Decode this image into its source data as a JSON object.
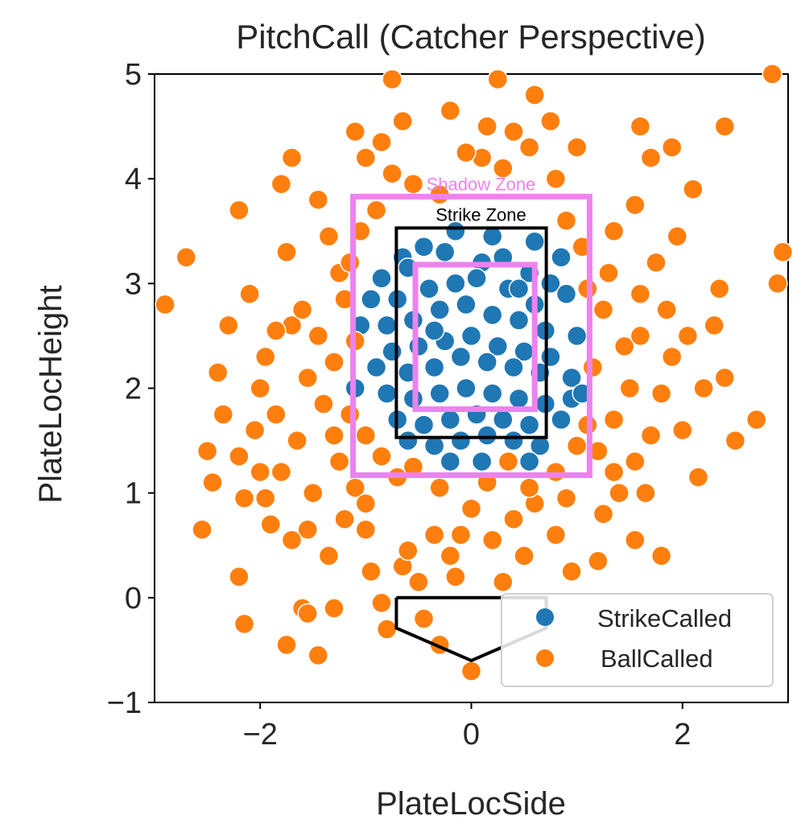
{
  "chart_data": {
    "type": "scatter",
    "title": "PitchCall (Catcher Perspective)",
    "xlabel": "PlateLocSide",
    "ylabel": "PlateLocHeight",
    "xlim": [
      -3,
      3
    ],
    "ylim": [
      -1,
      5
    ],
    "xticks": [
      {
        "value": -2,
        "label": "−2"
      },
      {
        "value": 0,
        "label": "0"
      },
      {
        "value": 2,
        "label": "2"
      }
    ],
    "yticks": [
      {
        "value": -1,
        "label": "−1"
      },
      {
        "value": 0,
        "label": "0"
      },
      {
        "value": 1,
        "label": "1"
      },
      {
        "value": 2,
        "label": "2"
      },
      {
        "value": 3,
        "label": "3"
      },
      {
        "value": 4,
        "label": "4"
      },
      {
        "value": 5,
        "label": "5"
      }
    ],
    "grid": false,
    "legend_position": "lower-right",
    "series": [
      {
        "name": "StrikeCalled",
        "color": "#1f77b4",
        "points": [
          [
            -0.85,
            3.05
          ],
          [
            -0.65,
            3.25
          ],
          [
            -0.45,
            3.35
          ],
          [
            -0.25,
            3.3
          ],
          [
            0.1,
            3.2
          ],
          [
            0.3,
            3.25
          ],
          [
            0.55,
            3.1
          ],
          [
            0.75,
            3.0
          ],
          [
            -0.7,
            2.85
          ],
          [
            -0.4,
            2.95
          ],
          [
            -0.15,
            3.0
          ],
          [
            0.05,
            3.05
          ],
          [
            0.35,
            2.95
          ],
          [
            0.6,
            2.8
          ],
          [
            0.9,
            2.9
          ],
          [
            -0.8,
            2.6
          ],
          [
            -0.55,
            2.65
          ],
          [
            -0.3,
            2.75
          ],
          [
            -0.05,
            2.8
          ],
          [
            0.2,
            2.7
          ],
          [
            0.45,
            2.65
          ],
          [
            0.7,
            2.55
          ],
          [
            -0.75,
            2.35
          ],
          [
            -0.5,
            2.4
          ],
          [
            -0.25,
            2.45
          ],
          [
            0.0,
            2.5
          ],
          [
            0.25,
            2.4
          ],
          [
            0.5,
            2.35
          ],
          [
            0.75,
            2.3
          ],
          [
            -0.9,
            2.2
          ],
          [
            -0.6,
            2.15
          ],
          [
            -0.35,
            2.2
          ],
          [
            -0.1,
            2.3
          ],
          [
            0.15,
            2.25
          ],
          [
            0.4,
            2.2
          ],
          [
            0.65,
            2.15
          ],
          [
            0.95,
            2.1
          ],
          [
            -0.8,
            1.95
          ],
          [
            -0.55,
            1.9
          ],
          [
            -0.3,
            1.95
          ],
          [
            -0.05,
            2.0
          ],
          [
            0.2,
            1.95
          ],
          [
            0.45,
            1.9
          ],
          [
            0.7,
            1.85
          ],
          [
            0.95,
            1.9
          ],
          [
            -0.7,
            1.7
          ],
          [
            -0.45,
            1.65
          ],
          [
            -0.2,
            1.7
          ],
          [
            0.05,
            1.75
          ],
          [
            0.3,
            1.7
          ],
          [
            0.55,
            1.65
          ],
          [
            0.85,
            1.7
          ],
          [
            -0.6,
            1.5
          ],
          [
            -0.35,
            1.45
          ],
          [
            -0.1,
            1.5
          ],
          [
            0.15,
            1.55
          ],
          [
            0.4,
            1.5
          ],
          [
            0.65,
            1.45
          ],
          [
            -0.2,
            1.3
          ],
          [
            0.1,
            1.3
          ],
          [
            0.55,
            1.3
          ],
          [
            -1.1,
            2.0
          ],
          [
            -1.05,
            2.6
          ],
          [
            1.0,
            2.5
          ],
          [
            1.05,
            1.95
          ],
          [
            -0.15,
            3.5
          ],
          [
            0.2,
            3.45
          ],
          [
            -0.6,
            3.15
          ],
          [
            0.85,
            3.25
          ],
          [
            -0.95,
            2.85
          ],
          [
            0.6,
            3.4
          ],
          [
            -0.35,
            2.55
          ],
          [
            0.45,
            2.95
          ]
        ]
      },
      {
        "name": "BallCalled",
        "color": "#ff7f0e",
        "points": [
          [
            -2.9,
            2.8
          ],
          [
            -2.7,
            3.25
          ],
          [
            -2.2,
            3.7
          ],
          [
            -2.1,
            2.9
          ],
          [
            -2.3,
            2.6
          ],
          [
            -2.4,
            2.15
          ],
          [
            -2.5,
            1.4
          ],
          [
            -2.45,
            1.1
          ],
          [
            -2.55,
            0.65
          ],
          [
            -2.2,
            1.35
          ],
          [
            -2.15,
            0.95
          ],
          [
            -2.0,
            2.0
          ],
          [
            -1.95,
            2.3
          ],
          [
            -1.85,
            1.75
          ],
          [
            -1.8,
            1.2
          ],
          [
            -1.9,
            0.7
          ],
          [
            -2.2,
            0.2
          ],
          [
            -2.15,
            -0.25
          ],
          [
            -1.75,
            -0.45
          ],
          [
            -1.6,
            -0.1
          ],
          [
            -1.45,
            -0.55
          ],
          [
            -1.35,
            0.4
          ],
          [
            -1.2,
            0.75
          ],
          [
            -1.5,
            1.0
          ],
          [
            -1.65,
            1.5
          ],
          [
            -1.7,
            2.6
          ],
          [
            -1.75,
            3.3
          ],
          [
            -1.8,
            3.95
          ],
          [
            -1.7,
            4.2
          ],
          [
            -1.45,
            3.8
          ],
          [
            -1.35,
            3.45
          ],
          [
            -1.25,
            3.1
          ],
          [
            -1.6,
            2.75
          ],
          [
            -1.55,
            2.1
          ],
          [
            -1.4,
            1.85
          ],
          [
            -1.3,
            1.55
          ],
          [
            -1.25,
            1.3
          ],
          [
            -1.1,
            1.05
          ],
          [
            -1.0,
            0.65
          ],
          [
            -0.95,
            0.25
          ],
          [
            -0.85,
            -0.05
          ],
          [
            -0.65,
            0.3
          ],
          [
            -0.5,
            0.15
          ],
          [
            -0.35,
            0.6
          ],
          [
            -0.2,
            0.4
          ],
          [
            0.0,
            0.85
          ],
          [
            0.2,
            0.55
          ],
          [
            0.4,
            0.75
          ],
          [
            0.6,
            0.9
          ],
          [
            0.8,
            0.6
          ],
          [
            0.95,
            0.25
          ],
          [
            1.2,
            0.35
          ],
          [
            1.25,
            0.8
          ],
          [
            1.4,
            1.0
          ],
          [
            1.55,
            1.3
          ],
          [
            1.7,
            1.55
          ],
          [
            1.8,
            1.95
          ],
          [
            1.9,
            2.3
          ],
          [
            1.85,
            2.75
          ],
          [
            1.75,
            3.2
          ],
          [
            1.95,
            3.45
          ],
          [
            2.1,
            3.9
          ],
          [
            1.7,
            4.2
          ],
          [
            1.55,
            3.75
          ],
          [
            1.35,
            3.5
          ],
          [
            1.3,
            3.1
          ],
          [
            1.25,
            2.75
          ],
          [
            1.45,
            2.4
          ],
          [
            1.5,
            2.0
          ],
          [
            1.35,
            1.7
          ],
          [
            1.2,
            1.4
          ],
          [
            2.0,
            1.6
          ],
          [
            2.15,
            1.15
          ],
          [
            1.8,
            0.4
          ],
          [
            2.3,
            2.6
          ],
          [
            2.4,
            2.1
          ],
          [
            2.5,
            1.5
          ],
          [
            2.7,
            1.7
          ],
          [
            2.9,
            3.0
          ],
          [
            2.95,
            3.3
          ],
          [
            2.4,
            4.5
          ],
          [
            1.9,
            4.3
          ],
          [
            2.85,
            5.0
          ],
          [
            1.6,
            4.5
          ],
          [
            1.0,
            4.3
          ],
          [
            0.8,
            4.0
          ],
          [
            0.55,
            4.3
          ],
          [
            0.75,
            4.55
          ],
          [
            0.25,
            4.95
          ],
          [
            0.6,
            4.8
          ],
          [
            0.3,
            4.1
          ],
          [
            0.1,
            4.2
          ],
          [
            -0.05,
            4.25
          ],
          [
            -0.3,
            3.85
          ],
          [
            -0.55,
            3.95
          ],
          [
            -0.75,
            4.05
          ],
          [
            -0.85,
            4.35
          ],
          [
            -0.65,
            4.55
          ],
          [
            -0.75,
            4.95
          ],
          [
            -1.1,
            4.45
          ],
          [
            -1.0,
            4.2
          ],
          [
            -0.2,
            4.65
          ],
          [
            0.4,
            4.45
          ],
          [
            0.15,
            4.5
          ],
          [
            -1.05,
            3.5
          ],
          [
            -1.15,
            3.2
          ],
          [
            -1.2,
            2.85
          ],
          [
            -1.1,
            2.45
          ],
          [
            -1.15,
            1.75
          ],
          [
            -1.0,
            1.55
          ],
          [
            -0.85,
            1.35
          ],
          [
            -0.7,
            1.15
          ],
          [
            -0.55,
            1.25
          ],
          [
            -0.3,
            1.05
          ],
          [
            0.15,
            1.1
          ],
          [
            0.35,
            1.3
          ],
          [
            0.55,
            1.05
          ],
          [
            0.8,
            1.2
          ],
          [
            1.0,
            1.45
          ],
          [
            1.1,
            1.65
          ],
          [
            1.15,
            2.2
          ],
          [
            1.1,
            2.95
          ],
          [
            1.05,
            3.35
          ],
          [
            0.9,
            3.6
          ],
          [
            -0.9,
            3.7
          ],
          [
            -1.3,
            2.25
          ],
          [
            -1.45,
            2.5
          ],
          [
            -1.0,
            0.9
          ],
          [
            -0.1,
            0.6
          ],
          [
            0.5,
            0.4
          ],
          [
            0.0,
            -0.7
          ],
          [
            -0.3,
            -0.45
          ],
          [
            -0.45,
            -0.2
          ],
          [
            -1.3,
            -0.1
          ],
          [
            -1.55,
            -0.15
          ],
          [
            -0.8,
            -0.3
          ],
          [
            -2.35,
            1.75
          ],
          [
            -2.05,
            1.6
          ],
          [
            2.05,
            2.5
          ],
          [
            2.2,
            2.0
          ],
          [
            2.35,
            2.95
          ],
          [
            1.6,
            2.9
          ],
          [
            1.6,
            2.5
          ],
          [
            1.65,
            1.0
          ],
          [
            1.55,
            0.55
          ],
          [
            0.9,
            0.95
          ],
          [
            -1.55,
            0.65
          ],
          [
            -1.95,
            0.95
          ],
          [
            -1.7,
            0.55
          ],
          [
            -0.6,
            0.45
          ],
          [
            -0.15,
            0.2
          ],
          [
            0.3,
            0.15
          ],
          [
            1.35,
            1.2
          ],
          [
            -1.85,
            2.55
          ],
          [
            -2.0,
            1.2
          ]
        ]
      }
    ],
    "shapes": {
      "shadow_zone": {
        "label": "Shadow Zone",
        "color": "#ee82ee",
        "x": [
          -1.12,
          1.12
        ],
        "y": [
          1.17,
          3.83
        ]
      },
      "strike_zone": {
        "label": "Strike Zone",
        "color": "#000000",
        "x": [
          -0.71,
          0.71
        ],
        "y": [
          1.53,
          3.53
        ]
      },
      "heart_zone": {
        "color": "#ee82ee",
        "x": [
          -0.53,
          0.6
        ],
        "y": [
          1.8,
          3.18
        ]
      },
      "home_plate": {
        "color": "#000000",
        "points": [
          [
            -0.71,
            0.0
          ],
          [
            0.71,
            0.0
          ],
          [
            0.71,
            -0.29
          ],
          [
            0.0,
            -0.6
          ],
          [
            -0.71,
            -0.29
          ],
          [
            -0.71,
            0.0
          ]
        ]
      }
    }
  }
}
